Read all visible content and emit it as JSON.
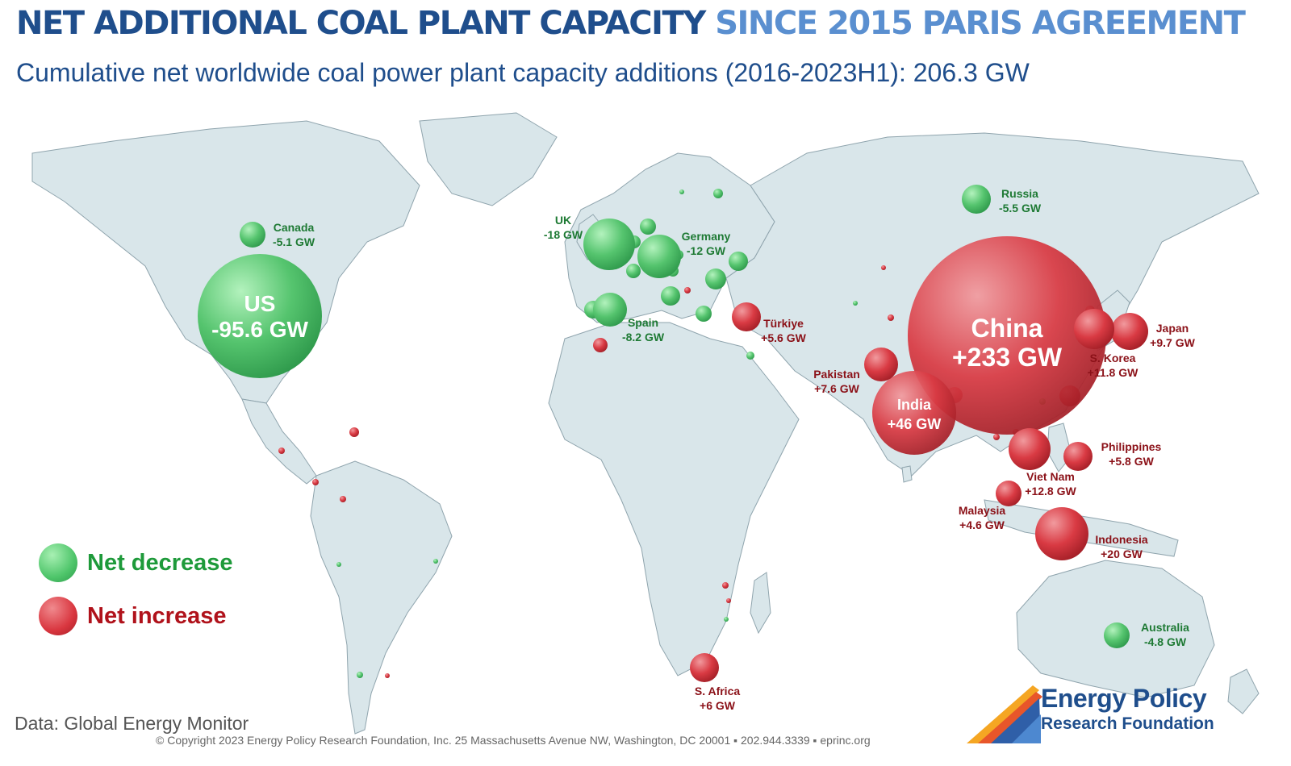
{
  "title": {
    "part1": "NET ADDITIONAL COAL PLANT CAPACITY",
    "part2": "SINCE 2015 PARIS AGREEMENT"
  },
  "subtitle": "Cumulative net worldwide coal power plant capacity additions (2016-2023H1): 206.3 GW",
  "colors": {
    "net_decrease": "#4ec56a",
    "net_increase": "#d9363f",
    "title_dark": "#1f4e8c",
    "title_light": "#5a8fd0",
    "land": "#d9e6ea",
    "ocean": "#ffffff"
  },
  "legend": {
    "decrease_label": "Net decrease",
    "increase_label": "Net increase"
  },
  "countries": {
    "us": {
      "name": "US",
      "value": "-95.6 GW"
    },
    "canada": {
      "name": "Canada",
      "value": "-5.1 GW"
    },
    "uk": {
      "name": "UK",
      "value": "-18 GW"
    },
    "germany": {
      "name": "Germany",
      "value": "-12 GW"
    },
    "spain": {
      "name": "Spain",
      "value": "-8.2 GW"
    },
    "russia": {
      "name": "Russia",
      "value": "-5.5 GW"
    },
    "turkiye": {
      "name": "Türkiye",
      "value": "+5.6 GW"
    },
    "china": {
      "name": "China",
      "value": "+233 GW"
    },
    "india": {
      "name": "India",
      "value": "+46 GW"
    },
    "pakistan": {
      "name": "Pakistan",
      "value": "+7.6 GW"
    },
    "japan": {
      "name": "Japan",
      "value": "+9.7 GW"
    },
    "s_korea": {
      "name": "S. Korea",
      "value": "+11.8 GW"
    },
    "philippines": {
      "name": "Philippines",
      "value": "+5.8 GW"
    },
    "viet_nam": {
      "name": "Viet Nam",
      "value": "+12.8 GW"
    },
    "malaysia": {
      "name": "Malaysia",
      "value": "+4.6 GW"
    },
    "indonesia": {
      "name": "Indonesia",
      "value": "+20 GW"
    },
    "s_africa": {
      "name": "S. Africa",
      "value": "+6 GW"
    },
    "australia": {
      "name": "Australia",
      "value": "-4.8 GW"
    }
  },
  "source": "Data: Global Energy Monitor",
  "copyright": "© Copyright 2023 Energy Policy Research Foundation, Inc. 25 Massachusetts Avenue NW, Washington, DC 20001 ▪ 202.944.3339 ▪ eprinc.org",
  "logo": {
    "line1": "Energy Policy",
    "line2": "Research Foundation"
  }
}
